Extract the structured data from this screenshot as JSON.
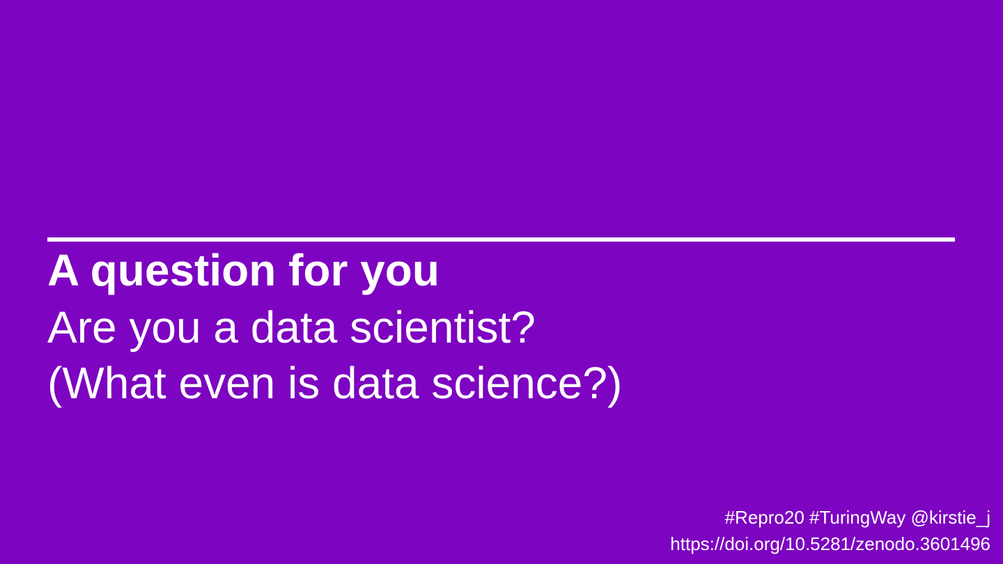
{
  "slide": {
    "title": "A question for you",
    "lines": [
      "Are you a data scientist?",
      "(What even is data science?)"
    ],
    "footer": {
      "tags": "#Repro20 #TuringWay @kirstie_j",
      "doi": "https://doi.org/10.5281/zenodo.3601496"
    }
  },
  "colors": {
    "background": "#7d04c0",
    "text": "#ffffff",
    "rule": "#ffffff"
  }
}
